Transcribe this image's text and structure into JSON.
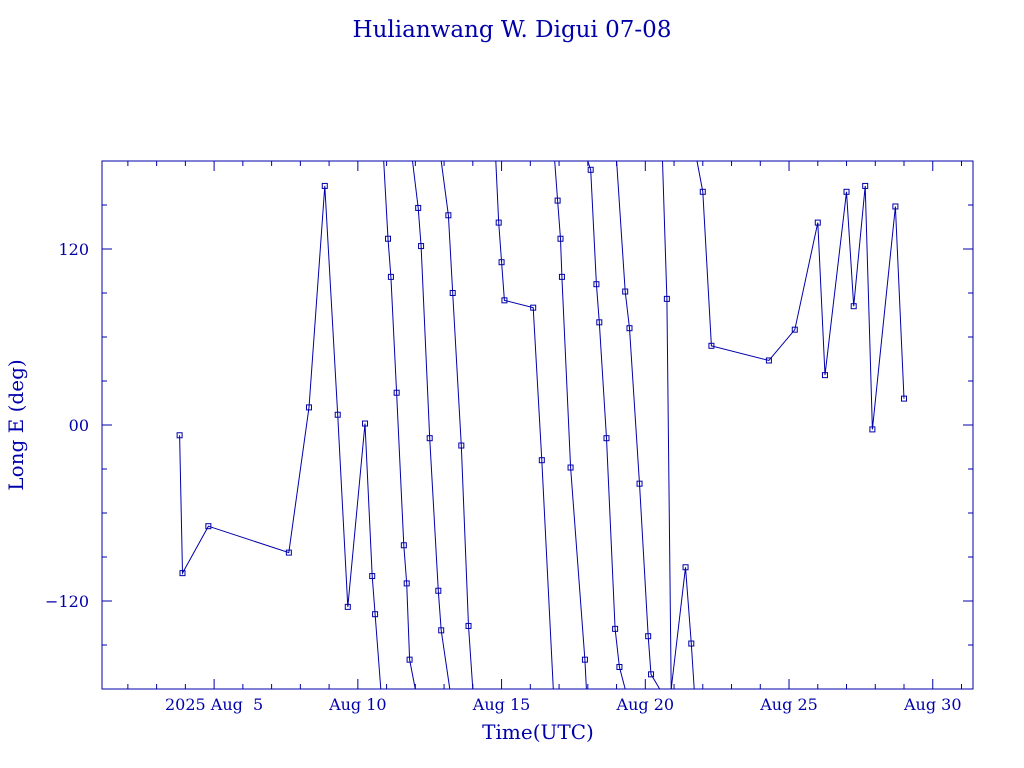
{
  "chart_data": {
    "type": "line",
    "title": "Hulianwang W. Digui 07-08",
    "xlabel": "Time(UTC)",
    "ylabel": "Long E (deg)",
    "color": "#0000aa",
    "x_unit": "days (Aug 2025, UTC)",
    "xlim": [
      1.1,
      31.4
    ],
    "ylim": [
      -180,
      180
    ],
    "x_tick_labels": [
      "2025 Aug  5",
      "Aug 10",
      "Aug 15",
      "Aug 20",
      "Aug 25",
      "Aug 30"
    ],
    "x_tick_values": [
      5,
      10,
      15,
      20,
      25,
      30
    ],
    "y_tick_labels": [
      "-120",
      "00",
      "120"
    ],
    "y_tick_values": [
      -120,
      0,
      120
    ],
    "grid": false,
    "segments": [
      [
        [
          3.8,
          -7
        ],
        [
          3.9,
          -101
        ],
        [
          4.8,
          -69
        ],
        [
          7.6,
          -87
        ],
        [
          8.3,
          12
        ],
        [
          8.85,
          163
        ],
        [
          9.3,
          7
        ],
        [
          9.65,
          -124
        ],
        [
          10.25,
          1
        ],
        [
          10.5,
          -103
        ],
        [
          10.6,
          -129
        ],
        [
          10.8,
          -180
        ]
      ],
      [
        [
          10.9,
          180
        ],
        [
          11.05,
          127
        ],
        [
          11.15,
          101
        ],
        [
          11.35,
          22
        ],
        [
          11.6,
          -82
        ],
        [
          11.7,
          -108
        ],
        [
          11.8,
          -160
        ],
        [
          12.0,
          -180
        ]
      ],
      [
        [
          11.9,
          180
        ],
        [
          12.1,
          148
        ],
        [
          12.2,
          122
        ],
        [
          12.5,
          -9
        ],
        [
          12.8,
          -113
        ],
        [
          12.9,
          -140
        ],
        [
          13.2,
          -180
        ]
      ],
      [
        [
          12.9,
          180
        ],
        [
          13.15,
          143
        ],
        [
          13.3,
          90
        ],
        [
          13.6,
          -14
        ],
        [
          13.85,
          -137
        ],
        [
          14.0,
          -180
        ]
      ],
      [
        [
          14.8,
          180
        ],
        [
          14.9,
          138
        ],
        [
          15.0,
          111
        ],
        [
          15.1,
          85
        ],
        [
          16.1,
          80
        ],
        [
          16.4,
          -24
        ],
        [
          16.8,
          -180
        ]
      ],
      [
        [
          16.85,
          180
        ],
        [
          16.95,
          153
        ],
        [
          17.05,
          127
        ],
        [
          17.1,
          101
        ],
        [
          17.4,
          -29
        ],
        [
          17.9,
          -160
        ],
        [
          17.95,
          -180
        ]
      ],
      [
        [
          18.0,
          180
        ],
        [
          18.1,
          174
        ],
        [
          18.3,
          96
        ],
        [
          18.4,
          70
        ],
        [
          18.65,
          -9
        ],
        [
          18.95,
          -139
        ],
        [
          19.1,
          -165
        ],
        [
          19.3,
          -180
        ]
      ],
      [
        [
          19.0,
          180
        ],
        [
          19.3,
          91
        ],
        [
          19.45,
          66
        ],
        [
          19.8,
          -40
        ],
        [
          20.1,
          -144
        ],
        [
          20.2,
          -170
        ],
        [
          20.5,
          -180
        ]
      ],
      [
        [
          20.6,
          180
        ],
        [
          20.75,
          86
        ],
        [
          20.9,
          -180
        ]
      ],
      [
        [
          20.9,
          -180
        ],
        [
          21.4,
          -97
        ],
        [
          21.6,
          -149
        ],
        [
          21.7,
          -180
        ]
      ],
      [
        [
          21.8,
          180
        ],
        [
          22.0,
          159
        ],
        [
          22.3,
          54
        ],
        [
          24.3,
          44
        ],
        [
          25.2,
          65
        ],
        [
          26.0,
          138
        ],
        [
          26.25,
          34
        ],
        [
          27.0,
          159
        ],
        [
          27.25,
          81
        ],
        [
          27.65,
          163
        ],
        [
          27.9,
          -3
        ],
        [
          28.7,
          149
        ],
        [
          29.0,
          18
        ]
      ]
    ]
  }
}
